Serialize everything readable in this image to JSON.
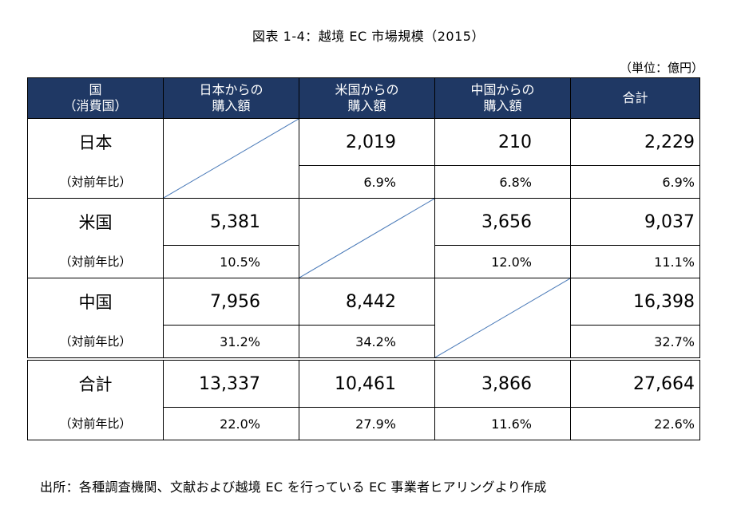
{
  "title": "図表 1-4：越境 EC 市場規模（2015）",
  "unit": "（単位：億円）",
  "header": {
    "col0_line1": "国",
    "col0_line2": "（消費国）",
    "col1_line1": "日本からの",
    "col1_line2": "購入額",
    "col2_line1": "米国からの",
    "col2_line2": "購入額",
    "col3_line1": "中国からの",
    "col3_line2": "購入額",
    "col4": "合計"
  },
  "rows": {
    "japan": {
      "country": "日本",
      "yoy_label": "（対前年比）",
      "from_us": "2,019",
      "from_china": "210",
      "total": "2,229",
      "from_us_yoy": "6.9%",
      "from_china_yoy": "6.8%",
      "total_yoy": "6.9%"
    },
    "us": {
      "country": "米国",
      "yoy_label": "（対前年比）",
      "from_japan": "5,381",
      "from_china": "3,656",
      "total": "9,037",
      "from_japan_yoy": "10.5%",
      "from_china_yoy": "12.0%",
      "total_yoy": "11.1%"
    },
    "china": {
      "country": "中国",
      "yoy_label": "（対前年比）",
      "from_japan": "7,956",
      "from_us": "8,442",
      "total": "16,398",
      "from_japan_yoy": "31.2%",
      "from_us_yoy": "34.2%",
      "total_yoy": "32.7%"
    },
    "total": {
      "country": "合計",
      "yoy_label": "（対前年比）",
      "from_japan": "13,337",
      "from_us": "10,461",
      "from_china": "3,866",
      "total": "27,664",
      "from_japan_yoy": "22.0%",
      "from_us_yoy": "27.9%",
      "from_china_yoy": "11.6%",
      "total_yoy": "22.6%"
    }
  },
  "source": "出所：各種調査機関、文献および越境 EC を行っている EC 事業者ヒアリングより作成",
  "colors": {
    "header_bg": "#1f3864",
    "header_text": "#ffffff",
    "diagonal": "#4a7ab8"
  }
}
